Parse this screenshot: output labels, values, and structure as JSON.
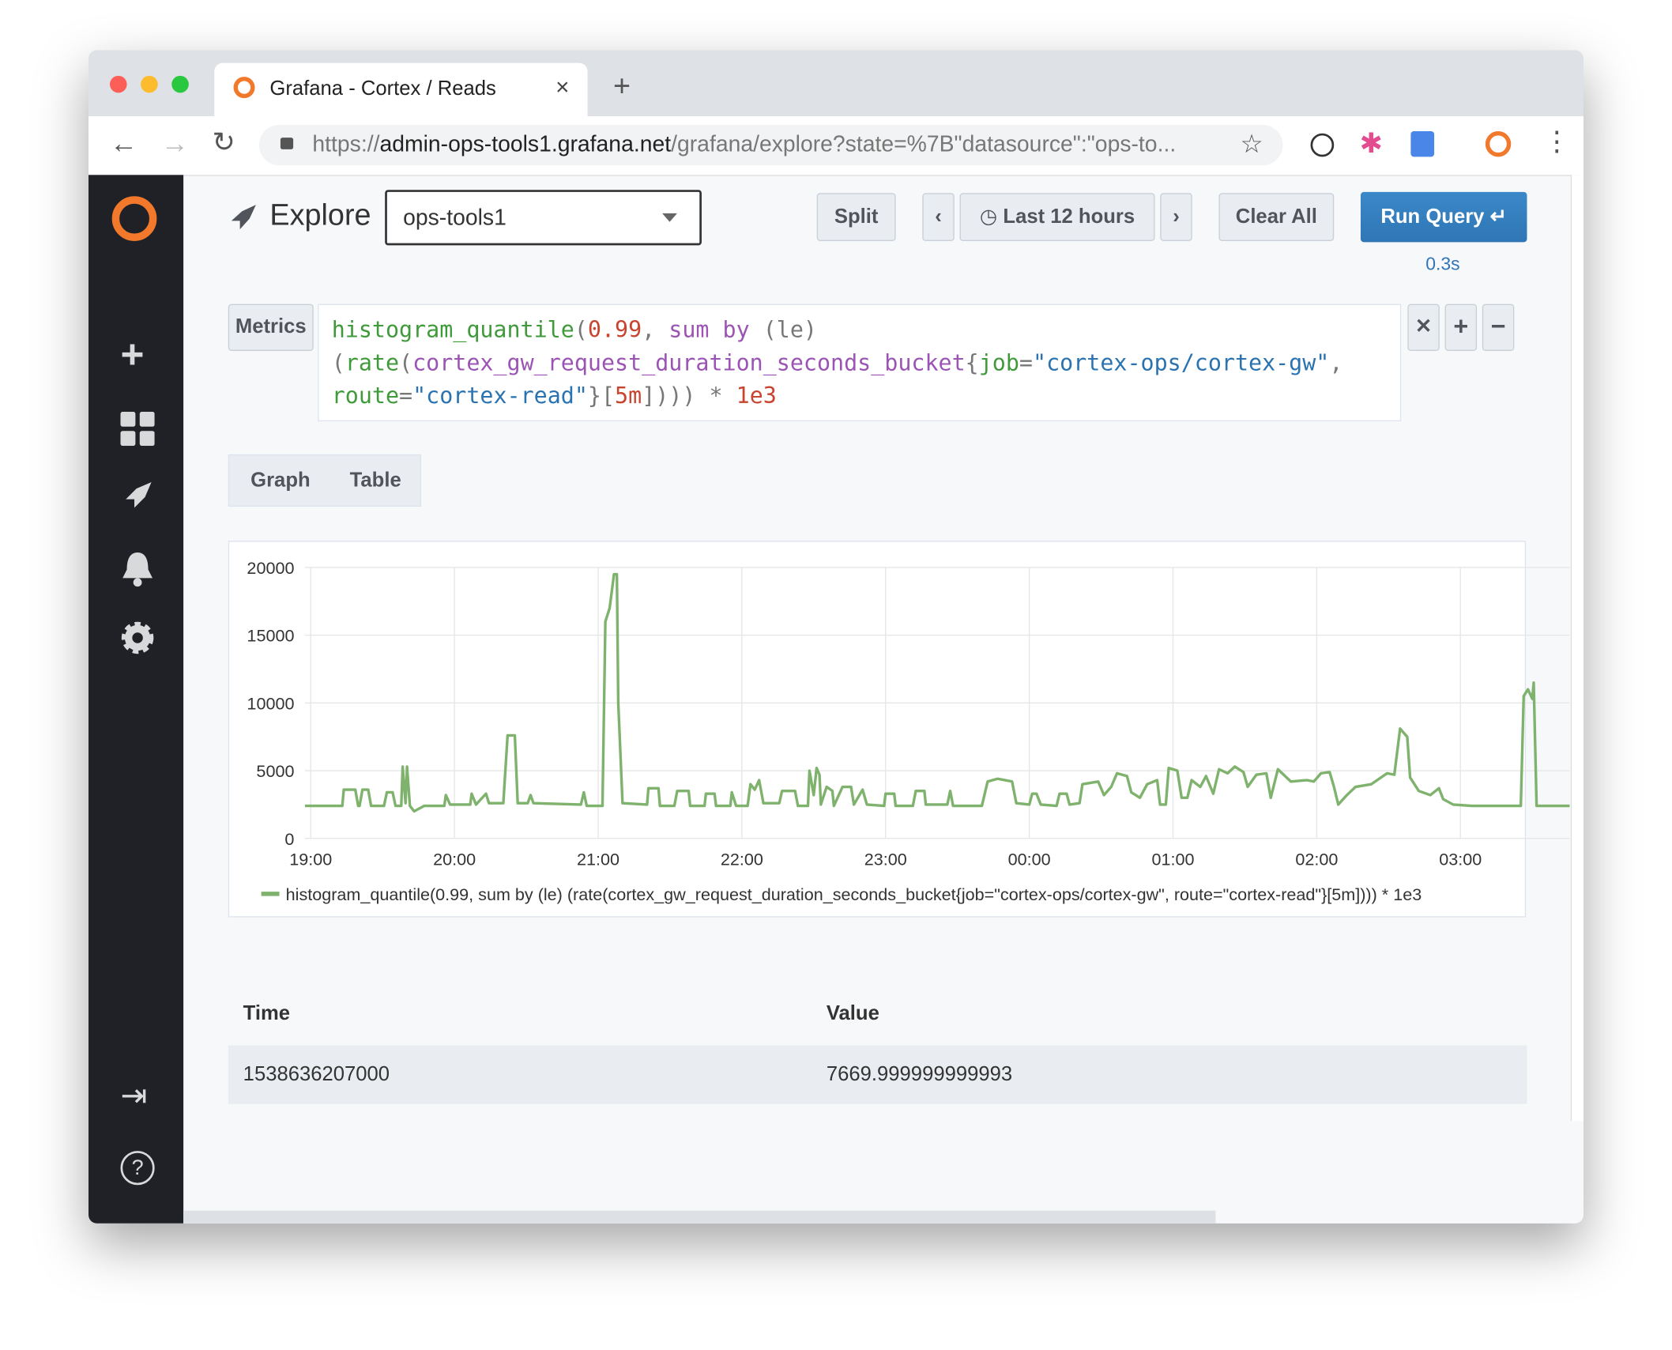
{
  "browser": {
    "tab_title": "Grafana - Cortex / Reads",
    "url_scheme": "https://",
    "url_host": "admin-ops-tools1.grafana.net",
    "url_path": "/grafana/explore?state=%7B\"datasource\":\"ops-to..."
  },
  "explore": {
    "title": "Explore",
    "datasource": "ops-tools1",
    "split": "Split",
    "time_range": "Last 12 hours",
    "clear_all": "Clear All",
    "run_query": "Run Query",
    "elapsed": "0.3s"
  },
  "query": {
    "label": "Metrics",
    "lines": [
      [
        {
          "text": "histogram_quantile",
          "color": "#3f9a3a"
        },
        {
          "text": "(",
          "color": "#777777"
        },
        {
          "text": "0.99",
          "color": "#c9442f"
        },
        {
          "text": ", ",
          "color": "#777777"
        },
        {
          "text": "sum by",
          "color": "#9b54b4"
        },
        {
          "text": " (le)",
          "color": "#777777"
        }
      ],
      [
        {
          "text": "(",
          "color": "#777777"
        },
        {
          "text": "rate",
          "color": "#3f9a3a"
        },
        {
          "text": "(",
          "color": "#777777"
        },
        {
          "text": "cortex_gw_request_duration_seconds_bucket",
          "color": "#9b54b4"
        },
        {
          "text": "{",
          "color": "#777777"
        },
        {
          "text": "job",
          "color": "#3f9a3a"
        },
        {
          "text": "=",
          "color": "#777777"
        },
        {
          "text": "\"cortex-ops/cortex-gw\"",
          "color": "#2a73b0"
        },
        {
          "text": ",",
          "color": "#777777"
        }
      ],
      [
        {
          "text": "route",
          "color": "#3f9a3a"
        },
        {
          "text": "=",
          "color": "#777777"
        },
        {
          "text": "\"cortex-read\"",
          "color": "#2a73b0"
        },
        {
          "text": "}[",
          "color": "#777777"
        },
        {
          "text": "5m",
          "color": "#c9442f"
        },
        {
          "text": "]))) * ",
          "color": "#777777"
        },
        {
          "text": "1e3",
          "color": "#c9442f"
        }
      ]
    ]
  },
  "tabs": [
    "Graph",
    "Table"
  ],
  "chart_data": {
    "type": "line",
    "x": [
      -0.04,
      0.22,
      0.23,
      0.31,
      0.33,
      0.34,
      0.36,
      0.4,
      0.42,
      0.51,
      0.53,
      0.57,
      0.59,
      0.63,
      0.64,
      0.66,
      0.67,
      0.69,
      0.72,
      0.79,
      0.93,
      0.94,
      0.97,
      1.11,
      1.12,
      1.15,
      1.22,
      1.24,
      1.34,
      1.37,
      1.42,
      1.44,
      1.51,
      1.53,
      1.55,
      1.88,
      1.9,
      1.92,
      2.03,
      2.05,
      2.08,
      2.11,
      2.13,
      2.14,
      2.17,
      2.34,
      2.35,
      2.42,
      2.43,
      2.53,
      2.55,
      2.63,
      2.64,
      2.74,
      2.75,
      2.81,
      2.82,
      2.92,
      2.93,
      2.96,
      3.04,
      3.06,
      3.09,
      3.12,
      3.15,
      3.26,
      3.28,
      3.37,
      3.39,
      3.46,
      3.47,
      3.5,
      3.52,
      3.54,
      3.55,
      3.59,
      3.63,
      3.64,
      3.7,
      3.76,
      3.78,
      3.84,
      3.87,
      3.99,
      4.0,
      4.06,
      4.07,
      4.19,
      4.21,
      4.27,
      4.28,
      4.43,
      4.45,
      4.47,
      4.67,
      4.71,
      4.78,
      4.88,
      4.91,
      5.0,
      5.02,
      5.05,
      5.08,
      5.19,
      5.21,
      5.26,
      5.28,
      5.35,
      5.37,
      5.48,
      5.52,
      5.57,
      5.61,
      5.68,
      5.71,
      5.77,
      5.82,
      5.89,
      5.91,
      5.95,
      5.97,
      6.03,
      6.06,
      6.1,
      6.13,
      6.19,
      6.23,
      6.28,
      6.32,
      6.38,
      6.43,
      6.49,
      6.52,
      6.58,
      6.65,
      6.68,
      6.73,
      6.82,
      6.93,
      6.98,
      7.03,
      7.09,
      7.12,
      7.15,
      7.21,
      7.27,
      7.38,
      7.49,
      7.54,
      7.58,
      7.63,
      7.65,
      7.71,
      7.79,
      7.85,
      7.88,
      7.95,
      8.08,
      8.42,
      8.44,
      8.47,
      8.5,
      8.51,
      8.53,
      8.76
    ],
    "series": [
      {
        "name": "histogram_quantile(0.99, sum by (le) (rate(cortex_gw_request_duration_seconds_bucket{job=\"cortex-ops/cortex-gw\", route=\"cortex-read\"}[5m]))) * 1e3",
        "color": "#7eb26d",
        "values": [
          2400,
          2400,
          3600,
          3600,
          2400,
          2400,
          3600,
          3600,
          2400,
          2400,
          3400,
          3400,
          2400,
          2400,
          5300,
          2600,
          5300,
          2400,
          2000,
          2400,
          2400,
          3200,
          2500,
          2500,
          3300,
          2500,
          3300,
          2600,
          2600,
          7600,
          7600,
          2600,
          2600,
          3200,
          2600,
          2500,
          3400,
          2400,
          2400,
          16000,
          17000,
          19500,
          19500,
          10000,
          2600,
          2500,
          3700,
          3700,
          2400,
          2400,
          3500,
          3500,
          2400,
          2400,
          3300,
          3300,
          2400,
          2400,
          3400,
          2400,
          2400,
          4000,
          3600,
          4300,
          2600,
          2600,
          3500,
          3500,
          2400,
          2400,
          5000,
          3200,
          5200,
          4700,
          2500,
          3800,
          3500,
          2400,
          3800,
          3800,
          2500,
          3600,
          2500,
          2400,
          3300,
          3300,
          2400,
          2400,
          3500,
          3500,
          2500,
          2500,
          3500,
          2400,
          2400,
          4200,
          4400,
          4200,
          2600,
          2500,
          3300,
          3300,
          2500,
          2400,
          3300,
          3300,
          2500,
          2600,
          4000,
          4200,
          3200,
          3800,
          4800,
          4600,
          3400,
          3000,
          4000,
          4300,
          2500,
          2500,
          5200,
          5000,
          3000,
          3000,
          4300,
          3800,
          4600,
          3300,
          5100,
          4800,
          5300,
          4900,
          3800,
          4700,
          4800,
          3000,
          5100,
          4200,
          4300,
          4200,
          4800,
          4900,
          3800,
          2500,
          3200,
          3800,
          4000,
          4800,
          4700,
          8100,
          7500,
          4500,
          3500,
          3200,
          3700,
          2900,
          2500,
          2400,
          2400,
          10500,
          11000,
          10300,
          11500,
          2400,
          2400
        ]
      }
    ],
    "xlim": [
      -0.04,
      8.76
    ],
    "xticks": [
      {
        "value": 0,
        "label": "19:00"
      },
      {
        "value": 1,
        "label": "20:00"
      },
      {
        "value": 2,
        "label": "21:00"
      },
      {
        "value": 3,
        "label": "22:00"
      },
      {
        "value": 4,
        "label": "23:00"
      },
      {
        "value": 5,
        "label": "00:00"
      },
      {
        "value": 6,
        "label": "01:00"
      },
      {
        "value": 7,
        "label": "02:00"
      },
      {
        "value": 8,
        "label": "03:00"
      }
    ],
    "ylim": [
      0,
      20000
    ],
    "yticks": [
      0,
      5000,
      10000,
      15000,
      20000
    ],
    "grid": true
  },
  "table": {
    "columns": [
      "Time",
      "Value"
    ],
    "rows": [
      [
        "1538636207000",
        "7669.999999999993"
      ]
    ]
  }
}
